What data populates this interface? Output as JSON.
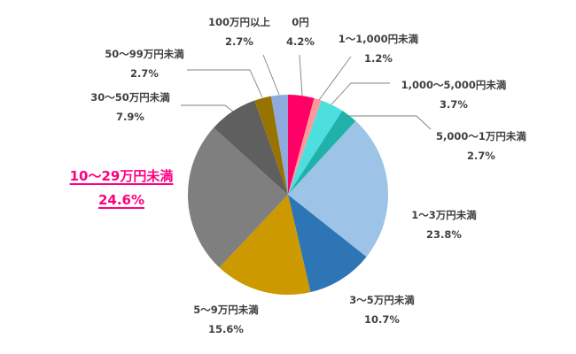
{
  "chart_data": {
    "type": "pie",
    "title": "",
    "start_angle_deg": -90,
    "direction": "clockwise",
    "center": [
      325,
      220
    ],
    "radius": 113,
    "slices": [
      {
        "label": "0円",
        "value": 4.2,
        "pct": "4.2%",
        "color": "#FF0066"
      },
      {
        "label": "1〜1,000円未満",
        "value": 1.2,
        "pct": "1.2%",
        "color": "#FF9999"
      },
      {
        "label": "1,000〜5,000円未満",
        "value": 3.7,
        "pct": "3.7%",
        "color": "#4DDEDE"
      },
      {
        "label": "5,000〜1万円未満",
        "value": 2.7,
        "pct": "2.7%",
        "color": "#20B2AA"
      },
      {
        "label": "1〜3万円未満",
        "value": 23.8,
        "pct": "23.8%",
        "color": "#9DC3E6"
      },
      {
        "label": "3〜5万円未満",
        "value": 10.7,
        "pct": "10.7%",
        "color": "#2E75B6"
      },
      {
        "label": "5〜9万円未満",
        "value": 15.6,
        "pct": "15.6%",
        "color": "#CC9900"
      },
      {
        "label": "10〜29万円未満",
        "value": 24.6,
        "pct": "24.6%",
        "color": "#7F7F7F",
        "highlight": true,
        "highlight_color": "#FF0080"
      },
      {
        "label": "30〜50万円未満",
        "value": 7.9,
        "pct": "7.9%",
        "color": "#5F5F5F"
      },
      {
        "label": "50〜99万円未満",
        "value": 2.7,
        "pct": "2.7%",
        "color": "#997300"
      },
      {
        "label": "100万円以上",
        "value": 2.7,
        "pct": "2.7%",
        "color": "#8FAADC"
      }
    ],
    "legend": "none (data labels with leader lines)"
  },
  "labels": {
    "s0": {
      "name": "0円",
      "pct": "4.2%"
    },
    "s1": {
      "name": "1〜1,000円未満",
      "pct": "1.2%"
    },
    "s2": {
      "name": "1,000〜5,000円未満",
      "pct": "3.7%"
    },
    "s3": {
      "name": "5,000〜1万円未満",
      "pct": "2.7%"
    },
    "s4": {
      "name": "1〜3万円未満",
      "pct": "23.8%"
    },
    "s5": {
      "name": "3〜5万円未満",
      "pct": "10.7%"
    },
    "s6": {
      "name": "5〜9万円未満",
      "pct": "15.6%"
    },
    "s7": {
      "name": "10〜29万円未満",
      "pct": "24.6%"
    },
    "s8": {
      "name": "30〜50万円未満",
      "pct": "7.9%"
    },
    "s9": {
      "name": "50〜99万円未満",
      "pct": "2.7%"
    },
    "s10": {
      "name": "100万円以上",
      "pct": "2.7%"
    }
  }
}
